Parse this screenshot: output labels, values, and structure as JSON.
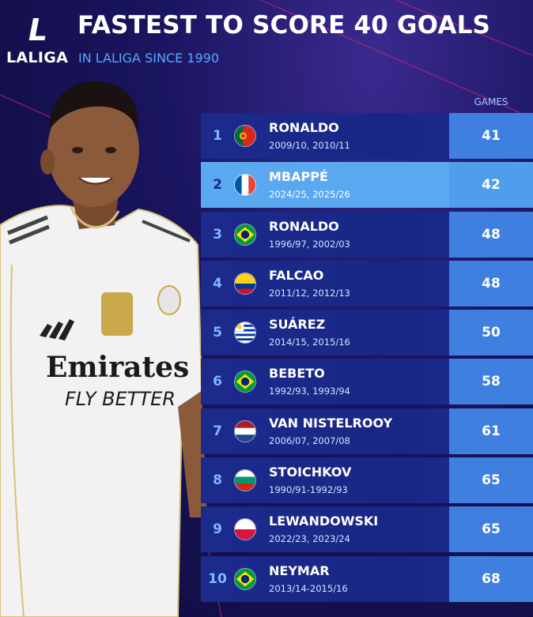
{
  "header": {
    "logo_text": "LALIGA",
    "logo_mark": "L",
    "title": "FASTEST TO SCORE 40 GOALS",
    "subtitle": "IN LALIGA SINCE 1990"
  },
  "player_image": {
    "shirt_sponsor_line1": "Emirates",
    "shirt_sponsor_line2": "FLY BETTER"
  },
  "table": {
    "games_header": "GAMES",
    "rows": [
      {
        "rank": "1",
        "flag": "portugal-flag-icon",
        "name": "RONALDO",
        "seasons": "2009/10, 2010/11",
        "games": "41"
      },
      {
        "rank": "2",
        "flag": "france-flag-icon",
        "name": "MBAPPÉ",
        "seasons": "2024/25, 2025/26",
        "games": "42"
      },
      {
        "rank": "3",
        "flag": "brazil-flag-icon",
        "name": "RONALDO",
        "seasons": "1996/97, 2002/03",
        "games": "48"
      },
      {
        "rank": "4",
        "flag": "colombia-flag-icon",
        "name": "FALCAO",
        "seasons": "2011/12, 2012/13",
        "games": "48"
      },
      {
        "rank": "5",
        "flag": "uruguay-flag-icon",
        "name": "SUÁREZ",
        "seasons": "2014/15, 2015/16",
        "games": "50"
      },
      {
        "rank": "6",
        "flag": "brazil-flag-icon",
        "name": "BEBETO",
        "seasons": "1992/93, 1993/94",
        "games": "58"
      },
      {
        "rank": "7",
        "flag": "netherlands-flag-icon",
        "name": "VAN NISTELROOY",
        "seasons": "2006/07, 2007/08",
        "games": "61"
      },
      {
        "rank": "8",
        "flag": "bulgaria-flag-icon",
        "name": "STOICHKOV",
        "seasons": "1990/91-1992/93",
        "games": "65"
      },
      {
        "rank": "9",
        "flag": "poland-flag-icon",
        "name": "LEWANDOWSKI",
        "seasons": "2022/23, 2023/24",
        "games": "65"
      },
      {
        "rank": "10",
        "flag": "brazil-flag-icon",
        "name": "NEYMAR",
        "seasons": "2013/14-2015/16",
        "games": "68"
      }
    ]
  },
  "colors": {
    "background": "#1a1560",
    "row": "#1c2a8c",
    "highlight_row": "#5aa8f0",
    "games_cell": "#3e7fe0",
    "subtitle": "#55a8ff"
  }
}
